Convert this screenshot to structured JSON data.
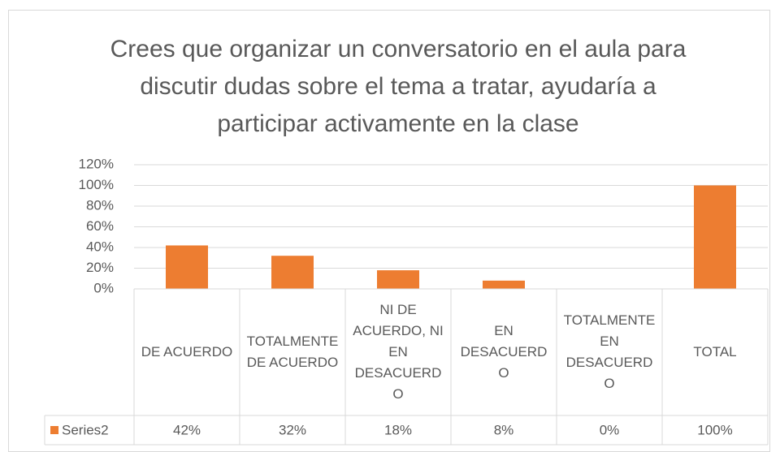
{
  "chart_data": {
    "type": "bar",
    "title": "Crees que organizar un conversatorio en el aula para discutir dudas sobre el tema a tratar, ayudaría a participar activamente en la clase",
    "categories": [
      "DE ACUERDO",
      "TOTALMENTE DE ACUERDO",
      "NI DE ACUERDO, NI EN DESACUERDO",
      "EN DESACUERDO",
      "TOTALMENTE EN DESACUERDO",
      "TOTAL"
    ],
    "series": [
      {
        "name": "Series2",
        "color": "#ed7d31",
        "values": [
          42,
          32,
          18,
          8,
          0,
          100
        ],
        "value_labels": [
          "42%",
          "32%",
          "18%",
          "8%",
          "0%",
          "100%"
        ]
      }
    ],
    "ylim": [
      0,
      120
    ],
    "yticks": [
      {
        "value": 0,
        "label": "0%"
      },
      {
        "value": 20,
        "label": "20%"
      },
      {
        "value": 40,
        "label": "40%"
      },
      {
        "value": 60,
        "label": "60%"
      },
      {
        "value": 80,
        "label": "80%"
      },
      {
        "value": 100,
        "label": "100%"
      },
      {
        "value": 120,
        "label": "120%"
      }
    ],
    "grid": true,
    "data_table": true
  }
}
